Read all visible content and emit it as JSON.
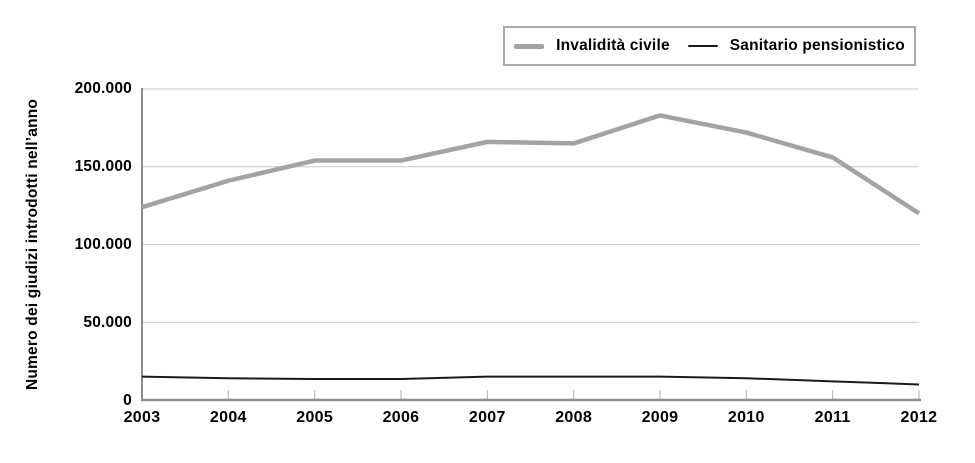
{
  "colors": {
    "gridline": "#c9c9c9",
    "axis": "#8c8c8c",
    "tick_mark": "#bdbdbd",
    "legend_border": "#a9a9a9",
    "background": "#ffffff",
    "text": "#000000"
  },
  "chart_data": {
    "type": "line",
    "title": "",
    "xlabel": "",
    "ylabel": "Numero dei giudizi introdotti nell’anno",
    "categories": [
      "2003",
      "2004",
      "2005",
      "2006",
      "2007",
      "2008",
      "2009",
      "2010",
      "2011",
      "2012"
    ],
    "ytick_labels": [
      "200.000",
      "150.000",
      "100.000",
      "50.000",
      "0"
    ],
    "yticks": [
      200000,
      150000,
      100000,
      50000,
      0
    ],
    "ylim": [
      0,
      200000
    ],
    "grid": "horizontal",
    "legend_position": "top-right",
    "series": [
      {
        "name": "Invalidità civile",
        "color": "#a3a3a3",
        "values": [
          124000,
          141000,
          154000,
          154000,
          166000,
          165000,
          183000,
          172000,
          156000,
          120000
        ]
      },
      {
        "name": "Sanitario pensionistico",
        "color": "#1a1a1a",
        "values": [
          15000,
          14000,
          13500,
          13500,
          15000,
          15000,
          15000,
          14000,
          12000,
          10000
        ]
      }
    ]
  }
}
